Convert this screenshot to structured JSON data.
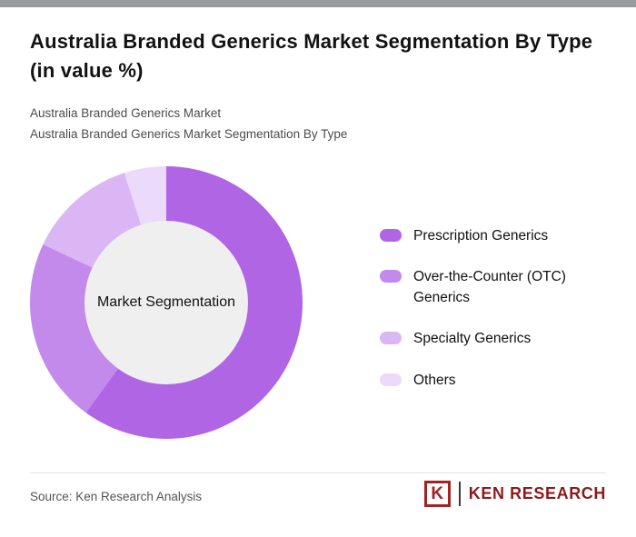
{
  "page": {
    "title": "Australia Branded Generics Market Segmentation By Type (in value %)",
    "subtitle_line1": "Australia Branded Generics Market",
    "subtitle_line2": "Australia Branded Generics Market Segmentation By Type"
  },
  "chart_data": {
    "type": "pie",
    "variant": "donut",
    "title": "Australia Branded Generics Market Segmentation By Type (in value %)",
    "center_label": "Market Segmentation",
    "labels": [
      "Prescription Generics",
      "Over-the-Counter (OTC) Generics",
      "Specialty Generics",
      "Others"
    ],
    "values": [
      60,
      22,
      13,
      5
    ],
    "colors": [
      "#b065e5",
      "#c389eb",
      "#dbb6f5",
      "#ecdafb"
    ],
    "units": "percent of market value",
    "start_angle_deg": 0,
    "direction": "clockwise",
    "legend_position": "right",
    "hole_color": "#efefef"
  },
  "footer": {
    "source": "Source: Ken Research Analysis",
    "logo_emblem": "K",
    "logo_text": "KEN RESEARCH"
  }
}
